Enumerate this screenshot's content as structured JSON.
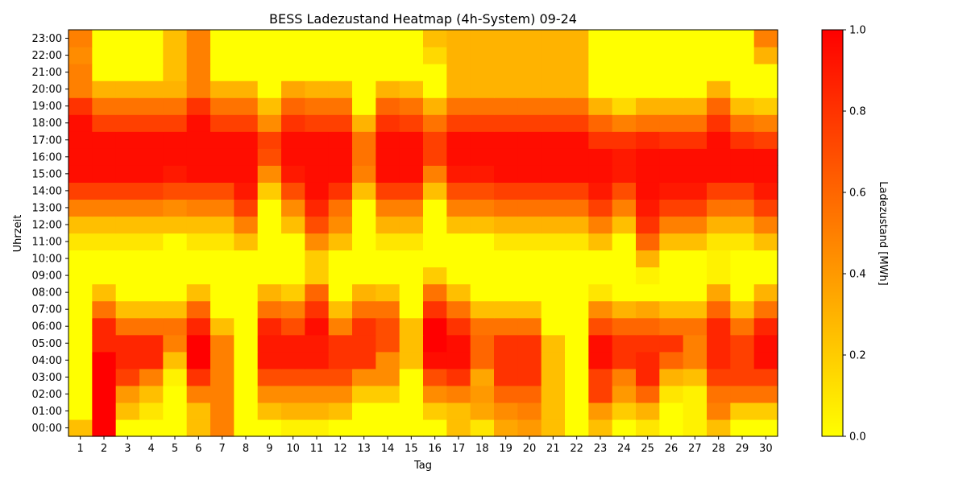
{
  "chart_data": {
    "type": "heatmap",
    "title": "BESS Ladezustand Heatmap (4h-System) 09-24",
    "xlabel": "Tag",
    "ylabel": "Uhrzeit",
    "x_categories": [
      "1",
      "2",
      "3",
      "4",
      "5",
      "6",
      "7",
      "8",
      "9",
      "10",
      "11",
      "12",
      "13",
      "14",
      "15",
      "16",
      "17",
      "18",
      "19",
      "20",
      "21",
      "22",
      "23",
      "24",
      "25",
      "26",
      "27",
      "28",
      "29",
      "30"
    ],
    "y_categories": [
      "00:00",
      "01:00",
      "02:00",
      "03:00",
      "04:00",
      "05:00",
      "06:00",
      "07:00",
      "08:00",
      "09:00",
      "10:00",
      "11:00",
      "12:00",
      "13:00",
      "14:00",
      "15:00",
      "16:00",
      "17:00",
      "18:00",
      "19:00",
      "20:00",
      "21:00",
      "22:00",
      "23:00"
    ],
    "colorbar": {
      "label": "Ladezustand [MWh]",
      "range": [
        0.0,
        1.0
      ],
      "ticks": [
        "0.0",
        "0.2",
        "0.4",
        "0.6",
        "0.8",
        "1.0"
      ],
      "colormap": "autumn_r",
      "low_color": "#ffff00",
      "high_color": "#ff0000"
    },
    "values": [
      [
        0.25,
        1.0,
        0.0,
        0.0,
        0.0,
        0.25,
        0.5,
        0.0,
        0.0,
        0.05,
        0.05,
        0.0,
        0.0,
        0.0,
        0.0,
        0.0,
        0.25,
        0.1,
        0.35,
        0.4,
        0.25,
        0.0,
        0.25,
        0.0,
        0.1,
        0.0,
        0.05,
        0.25,
        0.0,
        0.0
      ],
      [
        0.0,
        1.0,
        0.25,
        0.1,
        0.0,
        0.25,
        0.5,
        0.0,
        0.25,
        0.3,
        0.3,
        0.25,
        0.0,
        0.0,
        0.0,
        0.2,
        0.25,
        0.35,
        0.45,
        0.5,
        0.25,
        0.0,
        0.4,
        0.2,
        0.3,
        0.0,
        0.05,
        0.5,
        0.2,
        0.2
      ],
      [
        0.0,
        1.0,
        0.4,
        0.25,
        0.0,
        0.5,
        0.5,
        0.0,
        0.45,
        0.45,
        0.45,
        0.45,
        0.2,
        0.2,
        0.0,
        0.45,
        0.5,
        0.4,
        0.6,
        0.6,
        0.25,
        0.0,
        0.75,
        0.4,
        0.6,
        0.1,
        0.05,
        0.55,
        0.55,
        0.55
      ],
      [
        0.0,
        1.0,
        0.75,
        0.5,
        0.05,
        0.8,
        0.5,
        0.0,
        0.7,
        0.7,
        0.7,
        0.7,
        0.45,
        0.45,
        0.0,
        0.7,
        0.8,
        0.35,
        0.8,
        0.8,
        0.25,
        0.0,
        0.75,
        0.5,
        0.85,
        0.3,
        0.25,
        0.75,
        0.75,
        0.75
      ],
      [
        0.0,
        1.0,
        0.85,
        0.85,
        0.25,
        1.0,
        0.5,
        0.0,
        0.9,
        0.9,
        0.9,
        0.8,
        0.8,
        0.45,
        0.25,
        0.95,
        0.95,
        0.6,
        0.8,
        0.8,
        0.25,
        0.0,
        0.95,
        0.8,
        0.85,
        0.6,
        0.5,
        0.85,
        0.75,
        0.95
      ],
      [
        0.0,
        0.85,
        0.85,
        0.85,
        0.5,
        1.0,
        0.5,
        0.0,
        0.9,
        0.9,
        0.9,
        0.8,
        0.8,
        0.7,
        0.25,
        1.0,
        0.95,
        0.6,
        0.8,
        0.8,
        0.25,
        0.0,
        0.95,
        0.8,
        0.8,
        0.8,
        0.5,
        0.85,
        0.75,
        0.95
      ],
      [
        0.0,
        0.85,
        0.55,
        0.55,
        0.55,
        0.85,
        0.25,
        0.0,
        0.85,
        0.7,
        0.95,
        0.5,
        0.8,
        0.7,
        0.25,
        1.0,
        0.8,
        0.55,
        0.55,
        0.55,
        0.0,
        0.0,
        0.7,
        0.6,
        0.6,
        0.55,
        0.55,
        0.85,
        0.55,
        0.85
      ],
      [
        0.0,
        0.55,
        0.25,
        0.25,
        0.25,
        0.6,
        0.0,
        0.0,
        0.55,
        0.5,
        0.8,
        0.25,
        0.55,
        0.55,
        0.0,
        0.8,
        0.55,
        0.25,
        0.25,
        0.25,
        0.0,
        0.0,
        0.45,
        0.3,
        0.35,
        0.25,
        0.25,
        0.6,
        0.25,
        0.55
      ],
      [
        0.0,
        0.25,
        0.0,
        0.0,
        0.0,
        0.25,
        0.0,
        0.0,
        0.3,
        0.2,
        0.6,
        0.0,
        0.3,
        0.25,
        0.0,
        0.55,
        0.25,
        0.0,
        0.0,
        0.0,
        0.0,
        0.0,
        0.1,
        0.0,
        0.0,
        0.0,
        0.0,
        0.35,
        0.0,
        0.3
      ],
      [
        0.0,
        0.0,
        0.0,
        0.0,
        0.0,
        0.0,
        0.0,
        0.0,
        0.0,
        0.0,
        0.2,
        0.0,
        0.0,
        0.0,
        0.0,
        0.2,
        0.0,
        0.0,
        0.0,
        0.0,
        0.0,
        0.0,
        0.0,
        0.0,
        0.05,
        0.0,
        0.0,
        0.05,
        0.0,
        0.0
      ],
      [
        0.0,
        0.0,
        0.0,
        0.0,
        0.0,
        0.0,
        0.0,
        0.0,
        0.0,
        0.0,
        0.2,
        0.0,
        0.0,
        0.0,
        0.0,
        0.0,
        0.0,
        0.0,
        0.0,
        0.0,
        0.0,
        0.0,
        0.0,
        0.0,
        0.3,
        0.0,
        0.0,
        0.05,
        0.0,
        0.0
      ],
      [
        0.1,
        0.1,
        0.1,
        0.1,
        0.0,
        0.1,
        0.1,
        0.25,
        0.0,
        0.0,
        0.45,
        0.25,
        0.0,
        0.1,
        0.1,
        0.0,
        0.0,
        0.0,
        0.1,
        0.1,
        0.1,
        0.1,
        0.25,
        0.0,
        0.6,
        0.25,
        0.25,
        0.1,
        0.1,
        0.25
      ],
      [
        0.25,
        0.25,
        0.25,
        0.25,
        0.25,
        0.25,
        0.25,
        0.5,
        0.0,
        0.25,
        0.7,
        0.45,
        0.0,
        0.3,
        0.3,
        0.0,
        0.25,
        0.25,
        0.3,
        0.3,
        0.3,
        0.3,
        0.5,
        0.25,
        0.8,
        0.5,
        0.5,
        0.3,
        0.3,
        0.5
      ],
      [
        0.5,
        0.5,
        0.5,
        0.5,
        0.45,
        0.5,
        0.5,
        0.75,
        0.0,
        0.45,
        0.85,
        0.55,
        0.0,
        0.5,
        0.5,
        0.0,
        0.5,
        0.5,
        0.55,
        0.55,
        0.55,
        0.55,
        0.75,
        0.5,
        0.9,
        0.75,
        0.75,
        0.55,
        0.55,
        0.75
      ],
      [
        0.75,
        0.75,
        0.75,
        0.75,
        0.7,
        0.7,
        0.7,
        0.9,
        0.2,
        0.7,
        0.95,
        0.8,
        0.25,
        0.75,
        0.75,
        0.25,
        0.7,
        0.7,
        0.75,
        0.75,
        0.75,
        0.75,
        0.9,
        0.7,
        0.95,
        0.9,
        0.9,
        0.75,
        0.75,
        0.9
      ],
      [
        0.95,
        0.95,
        0.95,
        0.95,
        0.9,
        0.95,
        0.95,
        0.95,
        0.45,
        0.9,
        0.95,
        0.95,
        0.5,
        0.95,
        0.95,
        0.5,
        0.9,
        0.9,
        0.95,
        0.95,
        0.95,
        0.95,
        0.95,
        0.9,
        0.95,
        0.95,
        0.95,
        0.95,
        0.95,
        0.95
      ],
      [
        0.95,
        0.95,
        0.95,
        0.95,
        0.95,
        0.95,
        0.95,
        0.95,
        0.7,
        0.95,
        0.95,
        0.95,
        0.55,
        0.95,
        0.95,
        0.75,
        0.95,
        0.95,
        0.95,
        0.95,
        0.95,
        0.95,
        0.95,
        0.9,
        0.95,
        0.95,
        0.95,
        0.95,
        0.95,
        0.95
      ],
      [
        0.95,
        0.95,
        0.95,
        0.95,
        0.95,
        0.95,
        0.95,
        0.95,
        0.75,
        0.95,
        0.95,
        0.95,
        0.55,
        0.95,
        0.95,
        0.75,
        0.95,
        0.95,
        0.95,
        0.95,
        0.95,
        0.95,
        0.8,
        0.8,
        0.85,
        0.8,
        0.8,
        0.95,
        0.8,
        0.75
      ],
      [
        0.95,
        0.75,
        0.75,
        0.75,
        0.75,
        0.95,
        0.75,
        0.75,
        0.45,
        0.8,
        0.75,
        0.75,
        0.3,
        0.8,
        0.75,
        0.55,
        0.75,
        0.75,
        0.75,
        0.75,
        0.75,
        0.75,
        0.6,
        0.5,
        0.55,
        0.55,
        0.55,
        0.8,
        0.55,
        0.5
      ],
      [
        0.8,
        0.55,
        0.55,
        0.55,
        0.55,
        0.8,
        0.55,
        0.55,
        0.25,
        0.6,
        0.55,
        0.55,
        0.0,
        0.6,
        0.55,
        0.3,
        0.55,
        0.55,
        0.55,
        0.55,
        0.55,
        0.55,
        0.3,
        0.15,
        0.3,
        0.3,
        0.3,
        0.6,
        0.25,
        0.2
      ],
      [
        0.5,
        0.3,
        0.3,
        0.3,
        0.3,
        0.5,
        0.3,
        0.3,
        0.0,
        0.35,
        0.3,
        0.3,
        0.0,
        0.3,
        0.25,
        0.0,
        0.3,
        0.3,
        0.3,
        0.3,
        0.3,
        0.3,
        0.0,
        0.0,
        0.0,
        0.0,
        0.0,
        0.3,
        0.0,
        0.0
      ],
      [
        0.5,
        0.0,
        0.0,
        0.0,
        0.25,
        0.5,
        0.0,
        0.0,
        0.0,
        0.0,
        0.0,
        0.0,
        0.0,
        0.0,
        0.0,
        0.0,
        0.3,
        0.3,
        0.3,
        0.3,
        0.3,
        0.3,
        0.0,
        0.0,
        0.0,
        0.0,
        0.0,
        0.0,
        0.0,
        0.0
      ],
      [
        0.45,
        0.0,
        0.0,
        0.0,
        0.25,
        0.5,
        0.0,
        0.0,
        0.0,
        0.0,
        0.0,
        0.0,
        0.0,
        0.0,
        0.0,
        0.15,
        0.3,
        0.3,
        0.3,
        0.3,
        0.3,
        0.3,
        0.0,
        0.0,
        0.0,
        0.0,
        0.0,
        0.0,
        0.0,
        0.3
      ],
      [
        0.5,
        0.0,
        0.0,
        0.0,
        0.25,
        0.5,
        0.0,
        0.0,
        0.0,
        0.0,
        0.0,
        0.0,
        0.0,
        0.0,
        0.0,
        0.25,
        0.3,
        0.3,
        0.3,
        0.3,
        0.3,
        0.3,
        0.0,
        0.0,
        0.0,
        0.0,
        0.0,
        0.0,
        0.0,
        0.5
      ]
    ]
  }
}
